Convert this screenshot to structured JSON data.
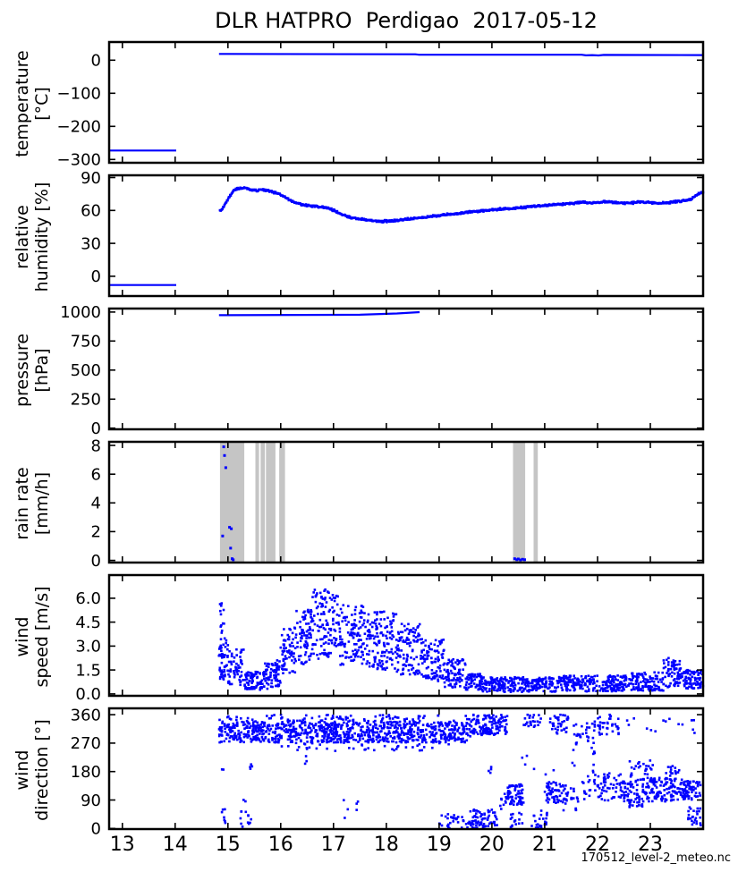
{
  "chart_data": {
    "type": "line+scatter multi-panel time series",
    "title": "DLR HATPRO  Perdigao  2017-05-12",
    "footer": "170512_level-2_meteo.nc",
    "point_color": "#0000ff",
    "band_color": "#c5c5c5",
    "frame_color": "#000000",
    "x": {
      "min": 12.75,
      "max": 24.0,
      "ticks": [
        13,
        14,
        15,
        16,
        17,
        18,
        19,
        20,
        21,
        22,
        23
      ]
    },
    "panels": [
      {
        "id": "temperature",
        "ylabel": "temperature\n[°C]",
        "ylim": [
          -310,
          55
        ],
        "yticks": [
          "0",
          "−100",
          "−200",
          "−300"
        ],
        "lines": [
          [
            [
              12.75,
              -273
            ],
            [
              14.02,
              -273
            ]
          ],
          [
            [
              14.83,
              19
            ],
            [
              18.55,
              18
            ],
            [
              18.62,
              16.5
            ],
            [
              21.7,
              16.5
            ],
            [
              21.78,
              14.8
            ],
            [
              21.9,
              15.5
            ],
            [
              22.02,
              14.5
            ],
            [
              22.12,
              16
            ],
            [
              24,
              15.5
            ]
          ]
        ]
      },
      {
        "id": "relative-humidity",
        "ylabel": "relative\nhumidity [%]",
        "ylim": [
          -18,
          92
        ],
        "yticks": [
          "90",
          "60",
          "30",
          "0"
        ],
        "lines": [
          [
            [
              12.75,
              -8
            ],
            [
              14.02,
              -8
            ]
          ]
        ],
        "scatter_trend": {
          "n": 760,
          "jitter": 1.1,
          "points": [
            [
              14.85,
              60
            ],
            [
              14.88,
              61
            ],
            [
              14.92,
              63
            ],
            [
              15.0,
              70
            ],
            [
              15.05,
              74
            ],
            [
              15.1,
              78
            ],
            [
              15.18,
              80
            ],
            [
              15.3,
              80.5
            ],
            [
              15.42,
              79
            ],
            [
              15.55,
              78
            ],
            [
              15.65,
              79.5
            ],
            [
              15.8,
              77.5
            ],
            [
              15.95,
              75.5
            ],
            [
              16.05,
              73
            ],
            [
              16.15,
              70
            ],
            [
              16.3,
              66.5
            ],
            [
              16.5,
              64.5
            ],
            [
              16.7,
              63.5
            ],
            [
              16.9,
              62
            ],
            [
              17.0,
              60
            ],
            [
              17.15,
              56.5
            ],
            [
              17.35,
              53
            ],
            [
              17.6,
              51.5
            ],
            [
              17.9,
              50
            ],
            [
              18.1,
              50.5
            ],
            [
              18.4,
              52
            ],
            [
              18.7,
              53.5
            ],
            [
              19.0,
              55.5
            ],
            [
              19.3,
              57
            ],
            [
              19.6,
              58.5
            ],
            [
              19.9,
              60
            ],
            [
              20.2,
              61.5
            ],
            [
              20.5,
              62.5
            ],
            [
              20.8,
              63.5
            ],
            [
              21.1,
              65
            ],
            [
              21.4,
              66
            ],
            [
              21.7,
              67.5
            ],
            [
              21.95,
              66.5
            ],
            [
              22.15,
              68
            ],
            [
              22.35,
              67
            ],
            [
              22.6,
              66.5
            ],
            [
              22.8,
              68
            ],
            [
              23.0,
              67
            ],
            [
              23.2,
              66.5
            ],
            [
              23.4,
              67.5
            ],
            [
              23.6,
              68.5
            ],
            [
              23.75,
              69.5
            ],
            [
              23.85,
              73
            ],
            [
              23.95,
              76
            ],
            [
              24.0,
              76.5
            ]
          ]
        }
      },
      {
        "id": "pressure",
        "ylabel": "pressure\n[hPa]",
        "ylim": [
          -10,
          1030
        ],
        "yticks": [
          "1000",
          "750",
          "500",
          "250",
          "0"
        ],
        "lines": [
          [
            [
              14.83,
              973
            ],
            [
              17.5,
              977
            ],
            [
              18.2,
              988
            ],
            [
              18.63,
              999
            ]
          ]
        ]
      },
      {
        "id": "rain-rate",
        "ylabel": "rain rate\n[mm/h]",
        "ylim": [
          -0.15,
          8.25
        ],
        "yticks": [
          "8",
          "6",
          "4",
          "2",
          "0"
        ],
        "vbands": [
          [
            14.85,
            15.31
          ],
          [
            15.52,
            15.59
          ],
          [
            15.62,
            15.7
          ],
          [
            15.72,
            15.9
          ],
          [
            15.97,
            16.08
          ],
          [
            20.4,
            20.63
          ],
          [
            20.79,
            20.87
          ]
        ],
        "dots": [
          [
            14.9,
            1.7
          ],
          [
            14.92,
            7.9
          ],
          [
            14.935,
            7.3
          ],
          [
            14.96,
            6.45
          ],
          [
            15.03,
            2.3
          ],
          [
            15.065,
            2.2
          ],
          [
            15.05,
            0.85
          ],
          [
            15.08,
            0.12
          ],
          [
            15.1,
            0.04
          ],
          [
            20.43,
            0.12
          ],
          [
            20.47,
            0.05
          ],
          [
            20.5,
            0.1
          ],
          [
            20.54,
            0.03
          ],
          [
            20.58,
            0.08
          ],
          [
            20.62,
            0.05
          ]
        ]
      },
      {
        "id": "wind-speed",
        "ylabel": "wind\nspeed [m/s]",
        "ylim": [
          -0.12,
          7.45
        ],
        "yticks": [
          "6.0",
          "4.5",
          "3.0",
          "1.5",
          "0.0"
        ],
        "scatter_bands": [
          [
            14.83,
            15.0,
            50,
            0.8,
            3.5
          ],
          [
            14.85,
            14.93,
            12,
            3.5,
            5.7
          ],
          [
            15.0,
            15.3,
            55,
            0.5,
            2.8
          ],
          [
            15.3,
            15.7,
            80,
            0.25,
            1.4
          ],
          [
            15.7,
            16.0,
            70,
            0.3,
            2.1
          ],
          [
            16.0,
            16.3,
            70,
            1.2,
            4.2
          ],
          [
            16.3,
            16.6,
            80,
            1.8,
            5.3
          ],
          [
            16.6,
            17.1,
            120,
            2.2,
            6.6
          ],
          [
            17.1,
            17.6,
            120,
            1.8,
            5.6
          ],
          [
            17.6,
            18.2,
            140,
            1.5,
            5.2
          ],
          [
            18.2,
            18.7,
            110,
            1.2,
            4.4
          ],
          [
            18.7,
            19.1,
            90,
            0.8,
            3.4
          ],
          [
            19.1,
            19.5,
            80,
            0.4,
            2.2
          ],
          [
            19.5,
            19.8,
            60,
            0.25,
            1.3
          ],
          [
            19.8,
            21.2,
            240,
            0.12,
            1.05
          ],
          [
            21.2,
            22.6,
            240,
            0.15,
            1.15
          ],
          [
            22.6,
            23.25,
            110,
            0.2,
            1.35
          ],
          [
            23.25,
            23.6,
            70,
            0.4,
            2.3
          ],
          [
            23.6,
            24.0,
            80,
            0.3,
            1.5
          ]
        ]
      },
      {
        "id": "wind-direction",
        "ylabel": "wind\ndirection [°]",
        "ylim": [
          -2,
          380
        ],
        "yticks": [
          "360",
          "270",
          "180",
          "90",
          "0"
        ],
        "scatter_bands": [
          [
            14.83,
            19.6,
            900,
            272,
            338
          ],
          [
            14.83,
            19.6,
            90,
            338,
            360
          ],
          [
            16.0,
            19.4,
            40,
            245,
            272
          ],
          [
            14.86,
            14.96,
            7,
            15,
            65
          ],
          [
            14.88,
            14.92,
            2,
            180,
            195
          ],
          [
            15.22,
            15.52,
            14,
            5,
            95
          ],
          [
            15.4,
            15.5,
            4,
            170,
            205
          ],
          [
            16.45,
            16.55,
            3,
            195,
            230
          ],
          [
            17.15,
            17.55,
            6,
            25,
            90
          ],
          [
            19.0,
            19.55,
            30,
            0,
            55
          ],
          [
            19.55,
            20.1,
            70,
            0,
            60
          ],
          [
            19.6,
            20.3,
            130,
            295,
            360
          ],
          [
            19.9,
            20.05,
            4,
            170,
            200
          ],
          [
            20.15,
            20.3,
            10,
            60,
            120
          ],
          [
            20.3,
            20.6,
            60,
            75,
            140
          ],
          [
            20.35,
            20.6,
            15,
            0,
            50
          ],
          [
            20.6,
            20.95,
            25,
            320,
            360
          ],
          [
            20.75,
            21.05,
            25,
            0,
            60
          ],
          [
            20.4,
            21.2,
            6,
            150,
            230
          ],
          [
            21.0,
            21.4,
            60,
            80,
            150
          ],
          [
            21.1,
            21.45,
            40,
            300,
            360
          ],
          [
            21.35,
            21.65,
            25,
            55,
            130
          ],
          [
            21.55,
            22.0,
            30,
            260,
            340
          ],
          [
            21.7,
            22.15,
            35,
            90,
            185
          ],
          [
            21.5,
            22.3,
            8,
            180,
            260
          ],
          [
            22.0,
            22.4,
            35,
            295,
            360
          ],
          [
            22.1,
            22.55,
            45,
            85,
            175
          ],
          [
            22.4,
            22.85,
            60,
            65,
            155
          ],
          [
            22.6,
            23.05,
            25,
            155,
            215
          ],
          [
            22.85,
            23.55,
            120,
            85,
            160
          ],
          [
            23.3,
            23.6,
            20,
            150,
            200
          ],
          [
            23.55,
            23.95,
            70,
            90,
            150
          ],
          [
            23.7,
            23.98,
            25,
            10,
            70
          ],
          [
            22.5,
            23.9,
            15,
            300,
            360
          ]
        ]
      }
    ]
  }
}
